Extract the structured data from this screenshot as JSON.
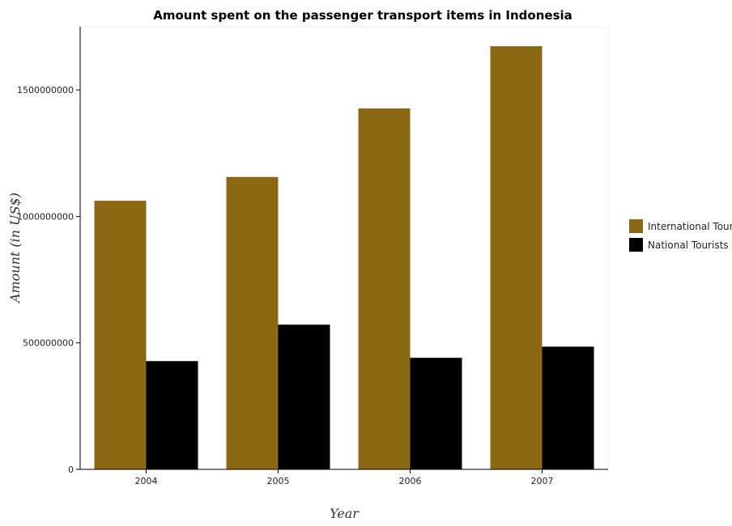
{
  "chart_data": {
    "type": "bar",
    "title": "Amount spent on the passenger transport items in Indonesia",
    "xlabel": "Year",
    "ylabel": "Amount (in US$)",
    "categories": [
      "2004",
      "2005",
      "2006",
      "2007"
    ],
    "series": [
      {
        "name": "International Tourists",
        "color": "#8B6914",
        "values": [
          1062000000,
          1156000000,
          1427000000,
          1673000000
        ]
      },
      {
        "name": "National Tourists",
        "color": "#000000",
        "values": [
          428000000,
          572000000,
          441000000,
          485000000
        ]
      }
    ],
    "ylim": [
      0,
      1750000000
    ],
    "yticks": [
      0,
      500000000,
      1000000000,
      1500000000
    ],
    "ytick_labels": [
      "0",
      "500000000",
      "1000000000",
      "1500000000"
    ],
    "grid": false,
    "legend_position": "right"
  }
}
